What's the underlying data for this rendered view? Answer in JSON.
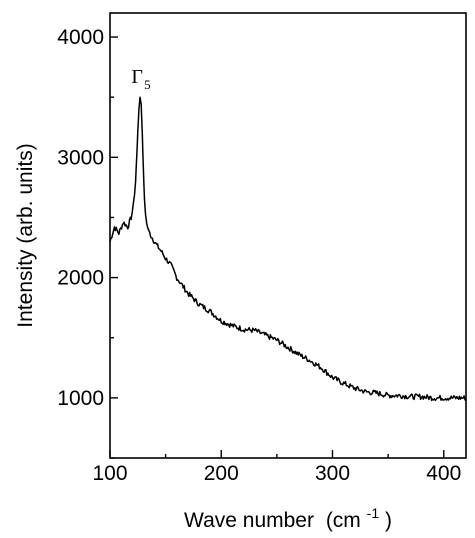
{
  "chart_data": {
    "type": "line",
    "title": "",
    "xlabel": "Wave number",
    "xlabel_unit_base": "(cm",
    "xlabel_unit_exp": "-1",
    "xlabel_unit_close": ")",
    "ylabel": "Intensity (arb. units)",
    "xlim": [
      100,
      420
    ],
    "ylim": [
      500,
      4200
    ],
    "x_ticks": [
      100,
      200,
      300,
      400
    ],
    "y_ticks": [
      1000,
      2000,
      3000,
      4000
    ],
    "grid": false,
    "annotations": [
      {
        "text": "Γ",
        "subscript": "5",
        "x": 128,
        "y": 3620
      }
    ],
    "series": [
      {
        "color": "#000000",
        "x": [
          100,
          104,
          108,
          112,
          116,
          119,
          121,
          123,
          124,
          125,
          126,
          127,
          128,
          129,
          130,
          131,
          132,
          133,
          135,
          138,
          142,
          146,
          150,
          155,
          160,
          170,
          180,
          190,
          200,
          210,
          220,
          230,
          240,
          250,
          260,
          270,
          280,
          290,
          300,
          310,
          320,
          330,
          340,
          350,
          360,
          370,
          380,
          390,
          400,
          410,
          420
        ],
        "y": [
          2300,
          2420,
          2370,
          2460,
          2420,
          2500,
          2600,
          2800,
          3000,
          3220,
          3400,
          3500,
          3440,
          3200,
          2900,
          2650,
          2520,
          2450,
          2380,
          2330,
          2270,
          2220,
          2160,
          2100,
          2000,
          1870,
          1780,
          1720,
          1640,
          1600,
          1570,
          1560,
          1520,
          1480,
          1420,
          1360,
          1310,
          1250,
          1170,
          1120,
          1080,
          1050,
          1040,
          1020,
          1020,
          1010,
          1010,
          1000,
          1000,
          1000,
          1000
        ]
      }
    ]
  }
}
